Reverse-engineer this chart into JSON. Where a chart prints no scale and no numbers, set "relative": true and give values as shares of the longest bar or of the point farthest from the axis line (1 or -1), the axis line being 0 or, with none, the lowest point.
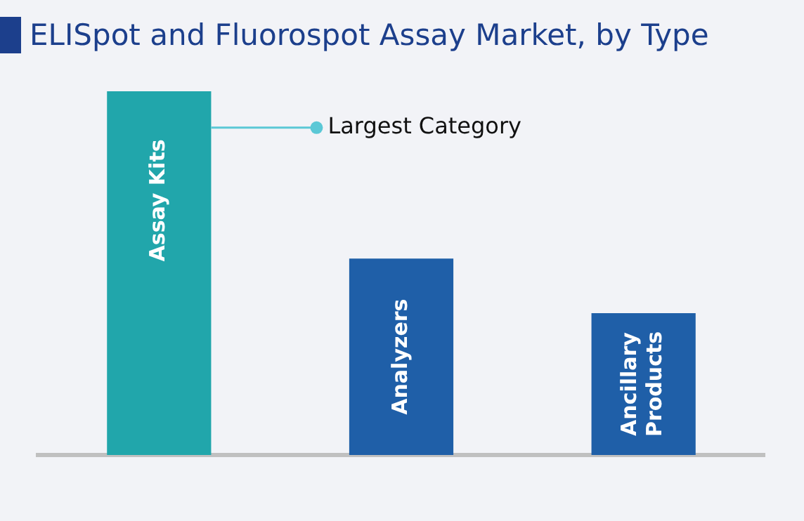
{
  "chart_data": {
    "type": "bar",
    "title": "ELISpot and Fluorospot Assay Market, by Type",
    "categories": [
      "Assay Kits",
      "Analyzers",
      "Ancillary Products"
    ],
    "values": [
      1,
      0.54,
      0.39
    ],
    "colors": [
      "#21a6ab",
      "#1f5fa8",
      "#1f5fa8"
    ],
    "relative": true,
    "grid": false,
    "legend": false,
    "annotations": [
      "Largest Category"
    ]
  }
}
